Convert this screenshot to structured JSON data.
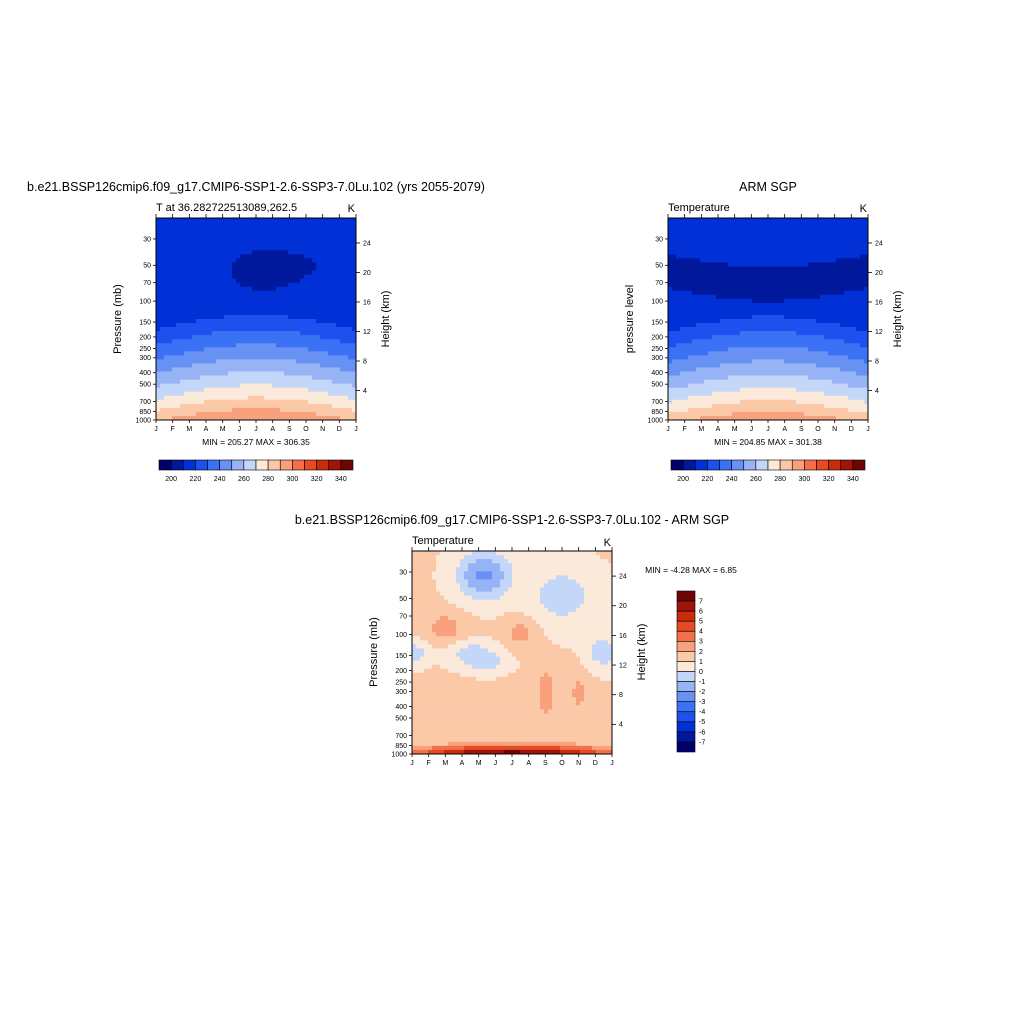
{
  "panels": {
    "model": {
      "title": "b.e21.BSSP126cmip6.f09_g17.CMIP6-SSP1-2.6-SSP3-7.0Lu.102 (yrs 2055-2079)",
      "left_string": "T at 36.282722513089,262.5",
      "right_string": "K",
      "y_label": "Pressure (mb)",
      "y2_label": "Height (km)",
      "min_max": "MIN = 205.27 MAX = 306.35"
    },
    "obs": {
      "title": "ARM SGP",
      "left_string": "Temperature",
      "right_string": "K",
      "y_label": "pressure level",
      "y2_label": "Height (km)",
      "min_max": "MIN = 204.85 MAX = 301.38"
    },
    "diff": {
      "title": "b.e21.BSSP126cmip6.f09_g17.CMIP6-SSP1-2.6-SSP3-7.0Lu.102 - ARM SGP",
      "left_string": "Temperature",
      "right_string": "K",
      "y_label": "Pressure (mb)",
      "y2_label": "Height (km)",
      "min_max": "MIN =  -4.28 MAX =   6.85"
    }
  },
  "chart_data": [
    {
      "type": "heatmap",
      "title": "b.e21.BSSP126cmip6.f09_g17.CMIP6-SSP1-2.6-SSP3-7.0Lu.102 (yrs 2055-2079)",
      "xlabel": "",
      "ylabel": "Pressure (mb)",
      "y2label": "Height (km)",
      "units": "K",
      "x": [
        "J",
        "F",
        "M",
        "A",
        "M",
        "J",
        "J",
        "A",
        "S",
        "O",
        "N",
        "D",
        "J"
      ],
      "y_pressure_ticks": [
        30,
        50,
        70,
        100,
        150,
        200,
        250,
        300,
        400,
        500,
        700,
        850,
        1000
      ],
      "y2_height_ticks": [
        4,
        8,
        12,
        16,
        20,
        24
      ],
      "ylim": [
        1000,
        20
      ],
      "y_scale": "log",
      "levels": [
        200,
        210,
        220,
        230,
        240,
        250,
        260,
        270,
        280,
        290,
        300,
        310,
        320,
        330,
        340
      ],
      "colorbar_labels": [
        200,
        220,
        240,
        260,
        280,
        300,
        320,
        340
      ],
      "min": 205.27,
      "max": 306.35
    },
    {
      "type": "heatmap",
      "title": "ARM SGP",
      "xlabel": "",
      "ylabel": "pressure level",
      "y2label": "Height (km)",
      "units": "K",
      "x": [
        "J",
        "F",
        "M",
        "A",
        "M",
        "J",
        "J",
        "A",
        "S",
        "O",
        "N",
        "D",
        "J"
      ],
      "y_pressure_ticks": [
        30,
        50,
        70,
        100,
        150,
        200,
        250,
        300,
        400,
        500,
        700,
        850,
        1000
      ],
      "y2_height_ticks": [
        4,
        8,
        12,
        16,
        20,
        24
      ],
      "ylim": [
        1000,
        20
      ],
      "y_scale": "log",
      "levels": [
        200,
        210,
        220,
        230,
        240,
        250,
        260,
        270,
        280,
        290,
        300,
        310,
        320,
        330,
        340
      ],
      "colorbar_labels": [
        200,
        220,
        240,
        260,
        280,
        300,
        320,
        340
      ],
      "min": 204.85,
      "max": 301.38
    },
    {
      "type": "heatmap",
      "title": "b.e21.BSSP126cmip6.f09_g17.CMIP6-SSP1-2.6-SSP3-7.0Lu.102 - ARM SGP",
      "xlabel": "",
      "ylabel": "Pressure (mb)",
      "y2label": "Height (km)",
      "units": "K",
      "x": [
        "J",
        "F",
        "M",
        "A",
        "M",
        "J",
        "J",
        "A",
        "S",
        "O",
        "N",
        "D",
        "J"
      ],
      "y_pressure_ticks": [
        30,
        50,
        70,
        100,
        150,
        200,
        250,
        300,
        400,
        500,
        700,
        850,
        1000
      ],
      "y2_height_ticks": [
        4,
        8,
        12,
        16,
        20,
        24
      ],
      "ylim": [
        1000,
        20
      ],
      "y_scale": "log",
      "levels": [
        -7,
        -6,
        -5,
        -4,
        -3,
        -2,
        -1,
        0,
        1,
        2,
        3,
        4,
        5,
        6,
        7
      ],
      "colorbar_labels": [
        7,
        6,
        5,
        4,
        3,
        2,
        1,
        0,
        -1,
        -2,
        -3,
        -4,
        -5,
        -6,
        -7
      ],
      "min": -4.28,
      "max": 6.85
    }
  ],
  "colors": {
    "palette": [
      "#00006b",
      "#00189c",
      "#0030d6",
      "#1c50ef",
      "#3b72f5",
      "#6792f3",
      "#96b4f5",
      "#c5d7f9",
      "#fbe9da",
      "#fbc8a8",
      "#f8a17c",
      "#f36e4b",
      "#e54a24",
      "#c92b0d",
      "#a0140a",
      "#6e0505"
    ]
  }
}
